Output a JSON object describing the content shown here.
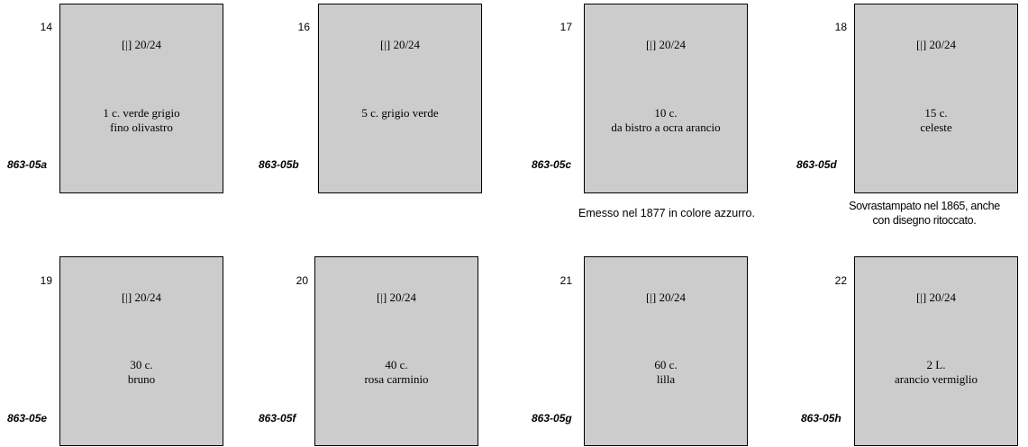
{
  "stamps": [
    {
      "number": "14",
      "plate": "[|] 20/24",
      "desc": [
        "1 c. verde grigio",
        "fino olivastro"
      ],
      "code": "863-05a"
    },
    {
      "number": "16",
      "plate": "[|] 20/24",
      "desc": [
        "5 c. grigio verde",
        ""
      ],
      "code": "863-05b"
    },
    {
      "number": "17",
      "plate": "[|] 20/24",
      "desc": [
        "10 c.",
        "da bistro a ocra arancio"
      ],
      "code": "863-05c"
    },
    {
      "number": "18",
      "plate": "[|] 20/24",
      "desc": [
        "15 c.",
        "celeste"
      ],
      "code": "863-05d"
    },
    {
      "number": "19",
      "plate": "[|] 20/24",
      "desc": [
        "30 c.",
        "bruno"
      ],
      "code": "863-05e"
    },
    {
      "number": "20",
      "plate": "[|] 20/24",
      "desc": [
        "40 c.",
        "rosa carminio"
      ],
      "code": "863-05f"
    },
    {
      "number": "21",
      "plate": "[|] 20/24",
      "desc": [
        "60 c.",
        "lilla"
      ],
      "code": "863-05g"
    },
    {
      "number": "22",
      "plate": "[|] 20/24",
      "desc": [
        "2 L.",
        "arancio vermiglio"
      ],
      "code": "863-05h"
    }
  ],
  "notes": {
    "stamp_17": [
      "Emesso nel 1877 in colore azzurro."
    ],
    "stamp_18": [
      "Sovrastampato nel 1865, anche",
      "con disegno ritoccato."
    ]
  },
  "colors": {
    "stamp_fill": "#cccccc",
    "border": "#000000"
  }
}
